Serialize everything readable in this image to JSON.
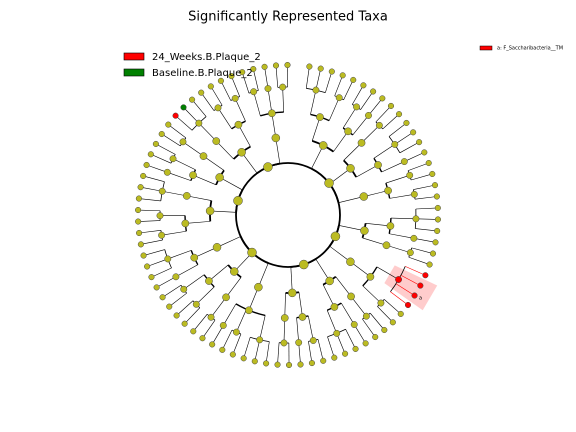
{
  "title": "Significantly Represented Taxa",
  "legend": [
    {
      "name": "24_Weeks.B.Plaque_2",
      "color": "#ff0000"
    },
    {
      "name": "Baseline.B.Plaque_2",
      "color": "#008000"
    }
  ],
  "side_legend": {
    "text": "a: F_Saccharibacteria__TM",
    "color": "#ff0000"
  },
  "clade_label": "a"
}
